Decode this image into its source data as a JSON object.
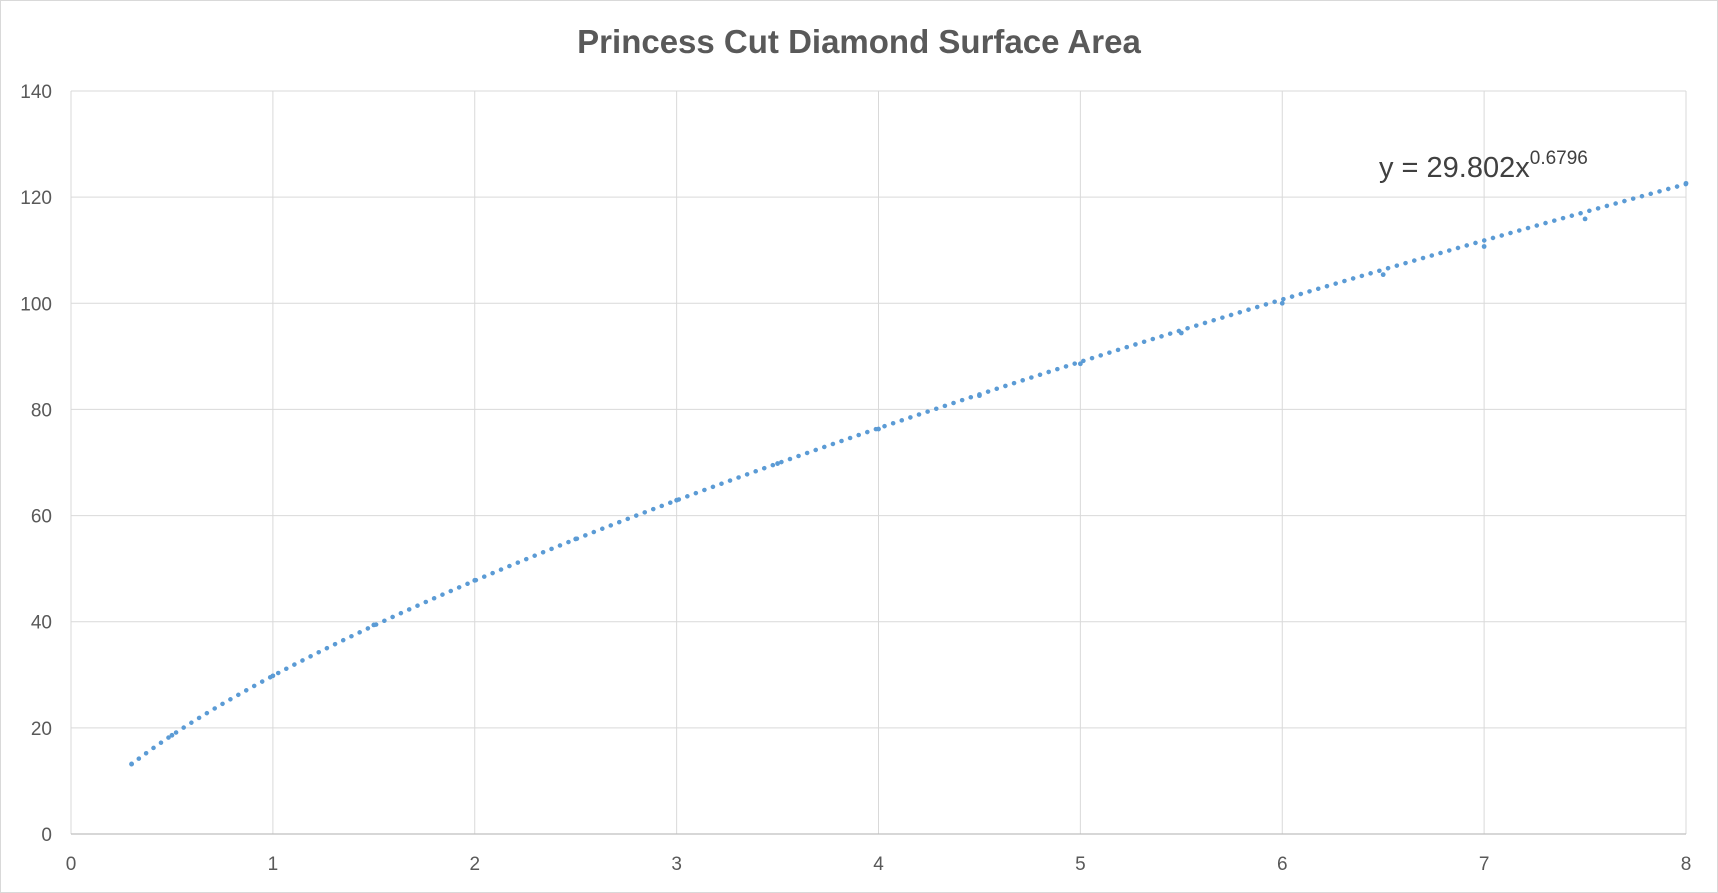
{
  "chart_data": {
    "type": "line",
    "title": "Princess Cut Diamond Surface Area",
    "xlabel": "",
    "ylabel": "",
    "xlim": [
      0,
      8
    ],
    "ylim": [
      0,
      140
    ],
    "x_ticks": [
      "0",
      "1",
      "2",
      "3",
      "4",
      "5",
      "6",
      "7",
      "8"
    ],
    "y_ticks": [
      "0",
      "20",
      "40",
      "60",
      "80",
      "100",
      "120",
      "140"
    ],
    "grid": true,
    "legend": "none",
    "series": [
      {
        "style": "dotted",
        "color": "#5b9bd5",
        "equation": {
          "coefficient": 29.802,
          "exponent": 0.6796
        },
        "x": [
          0.3,
          0.5,
          1,
          1.5,
          2,
          2.5,
          3,
          3.5,
          4,
          4.5,
          5,
          5.5,
          6,
          6.5,
          7,
          7.5,
          8
        ],
        "y": [
          13.2,
          18.6,
          29.8,
          39.4,
          47.8,
          55.6,
          62.9,
          69.8,
          76.3,
          82.6,
          88.6,
          94.4,
          100.0,
          105.4,
          110.7,
          115.9,
          122.6
        ]
      }
    ],
    "annotation": {
      "prefix": "y = 29.802x",
      "superscript": "0.6796"
    }
  }
}
